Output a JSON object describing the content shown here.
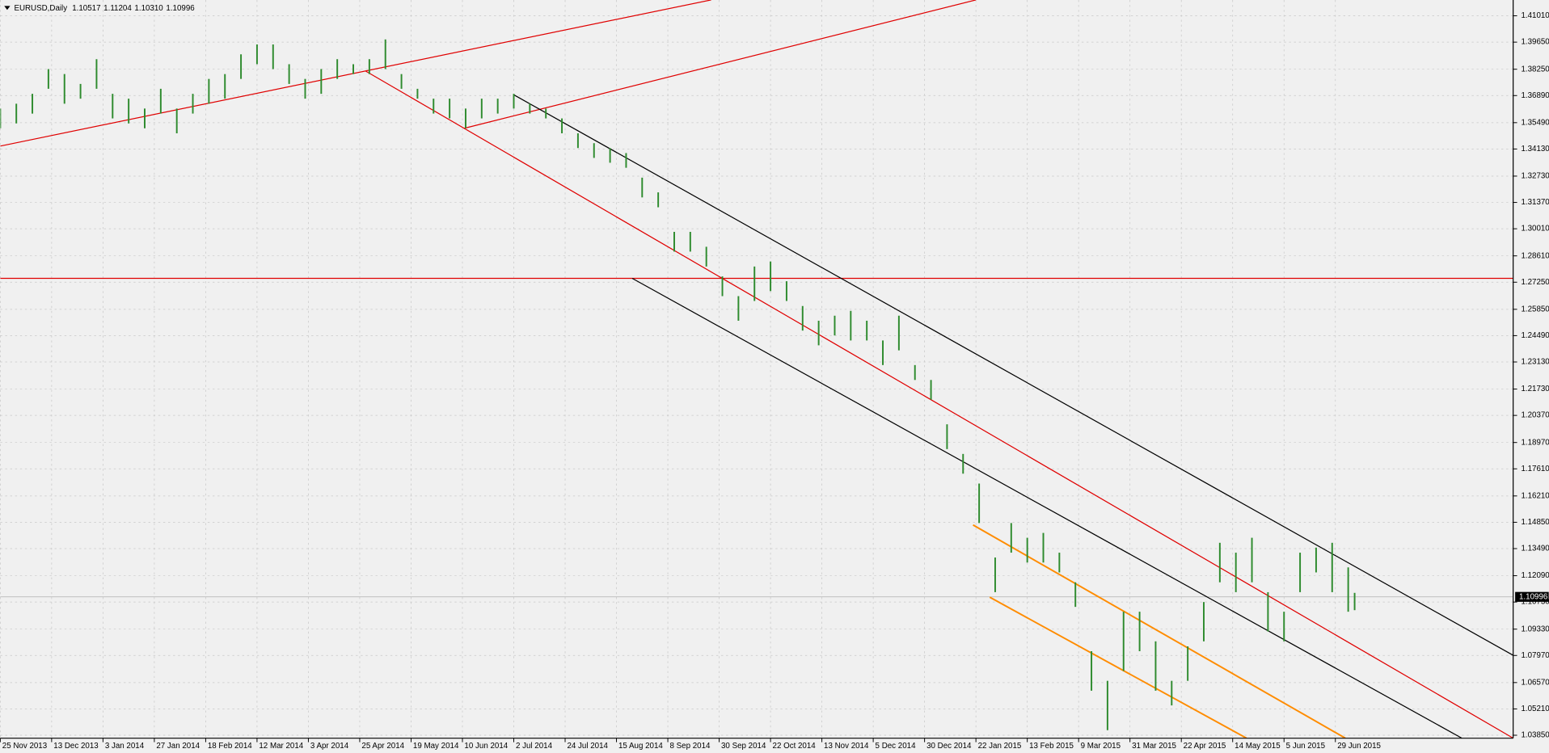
{
  "chart_data": {
    "type": "hlbar",
    "symbol": "EURUSD,Daily",
    "header_values": [
      1.10517,
      1.11204,
      1.1031,
      1.10996
    ],
    "header_labels": [
      "1.10517",
      "1.11204",
      "1.10310",
      "1.10996"
    ],
    "last": 1.10996,
    "color": "#2e8b2e",
    "grid": true,
    "xlim": [
      0,
      471.4
    ],
    "ylim": [
      1.03697,
      1.41826
    ],
    "xticks": [
      {
        "value": 0,
        "label": "25 Nov 2013"
      },
      {
        "value": 16,
        "label": "13 Dec 2013"
      },
      {
        "value": 32,
        "label": "3 Jan 2014"
      },
      {
        "value": 48,
        "label": "27 Jan 2014"
      },
      {
        "value": 64,
        "label": "18 Feb 2014"
      },
      {
        "value": 80,
        "label": "12 Mar 2014"
      },
      {
        "value": 96,
        "label": "3 Apr 2014"
      },
      {
        "value": 112,
        "label": "25 Apr 2014"
      },
      {
        "value": 128,
        "label": "19 May 2014"
      },
      {
        "value": 144,
        "label": "10 Jun 2014"
      },
      {
        "value": 160,
        "label": "2 Jul 2014"
      },
      {
        "value": 176,
        "label": "24 Jul 2014"
      },
      {
        "value": 192,
        "label": "15 Aug 2014"
      },
      {
        "value": 208,
        "label": "8 Sep 2014"
      },
      {
        "value": 224,
        "label": "30 Sep 2014"
      },
      {
        "value": 240,
        "label": "22 Oct 2014"
      },
      {
        "value": 256,
        "label": "13 Nov 2014"
      },
      {
        "value": 272,
        "label": "5 Dec 2014"
      },
      {
        "value": 288,
        "label": "30 Dec 2014"
      },
      {
        "value": 304,
        "label": "22 Jan 2015"
      },
      {
        "value": 320,
        "label": "13 Feb 2015"
      },
      {
        "value": 336,
        "label": "9 Mar 2015"
      },
      {
        "value": 352,
        "label": "31 Mar 2015"
      },
      {
        "value": 368,
        "label": "22 Apr 2015"
      },
      {
        "value": 384,
        "label": "14 May 2015"
      },
      {
        "value": 400,
        "label": "5 Jun 2015"
      },
      {
        "value": 416,
        "label": "29 Jun 2015"
      }
    ],
    "yticks": [
      {
        "value": 1.4101,
        "label": "1.41010"
      },
      {
        "value": 1.3965,
        "label": "1.39650"
      },
      {
        "value": 1.3825,
        "label": "1.38250"
      },
      {
        "value": 1.3689,
        "label": "1.36890"
      },
      {
        "value": 1.3549,
        "label": "1.35490"
      },
      {
        "value": 1.3413,
        "label": "1.34130"
      },
      {
        "value": 1.3273,
        "label": "1.32730"
      },
      {
        "value": 1.3137,
        "label": "1.31370"
      },
      {
        "value": 1.3001,
        "label": "1.30010"
      },
      {
        "value": 1.2861,
        "label": "1.28610"
      },
      {
        "value": 1.2725,
        "label": "1.27250"
      },
      {
        "value": 1.2585,
        "label": "1.25850"
      },
      {
        "value": 1.2449,
        "label": "1.24490"
      },
      {
        "value": 1.2313,
        "label": "1.23130"
      },
      {
        "value": 1.2173,
        "label": "1.21730"
      },
      {
        "value": 1.2037,
        "label": "1.20370"
      },
      {
        "value": 1.1897,
        "label": "1.18970"
      },
      {
        "value": 1.1761,
        "label": "1.17610"
      },
      {
        "value": 1.1621,
        "label": "1.16210"
      },
      {
        "value": 1.1485,
        "label": "1.14850"
      },
      {
        "value": 1.1349,
        "label": "1.13490"
      },
      {
        "value": 1.1209,
        "label": "1.12090"
      },
      {
        "value": 1.1073,
        "label": "1.10730"
      },
      {
        "value": 1.0933,
        "label": "1.09330"
      },
      {
        "value": 1.0797,
        "label": "1.07970"
      },
      {
        "value": 1.0657,
        "label": "1.06570"
      },
      {
        "value": 1.0521,
        "label": "1.05210"
      },
      {
        "value": 1.0385,
        "label": "1.03850"
      }
    ],
    "x": [
      0,
      5,
      10,
      15,
      20,
      25,
      30,
      35,
      40,
      45,
      50,
      55,
      60,
      65,
      70,
      75,
      80,
      85,
      90,
      95,
      100,
      105,
      110,
      115,
      120,
      125,
      130,
      135,
      140,
      145,
      150,
      155,
      160,
      165,
      170,
      175,
      180,
      185,
      190,
      195,
      200,
      205,
      210,
      215,
      220,
      225,
      230,
      235,
      240,
      245,
      250,
      255,
      260,
      265,
      270,
      275,
      280,
      285,
      290,
      295,
      300,
      305,
      310,
      315,
      320,
      325,
      330,
      335,
      340,
      345,
      350,
      355,
      360,
      365,
      370,
      375,
      380,
      385,
      390,
      395,
      400,
      405,
      410,
      415,
      420,
      422
    ],
    "high": [
      1.3622,
      1.3647,
      1.3698,
      1.3826,
      1.38,
      1.3749,
      1.3877,
      1.3698,
      1.3673,
      1.3622,
      1.3724,
      1.3622,
      1.3698,
      1.3775,
      1.38,
      1.3902,
      1.3953,
      1.3953,
      1.3851,
      1.3775,
      1.3826,
      1.3877,
      1.3851,
      1.3877,
      1.3979,
      1.38,
      1.3724,
      1.3673,
      1.3673,
      1.3622,
      1.3673,
      1.3673,
      1.3698,
      1.3647,
      1.3622,
      1.3571,
      1.3494,
      1.3443,
      1.3418,
      1.3392,
      1.3265,
      1.3189,
      1.2985,
      1.2985,
      1.2908,
      1.2755,
      1.2653,
      1.2806,
      1.2832,
      1.273,
      1.2602,
      1.2526,
      1.2552,
      1.2577,
      1.2526,
      1.2424,
      1.2552,
      1.2297,
      1.222,
      1.1991,
      1.1838,
      1.1685,
      1.1303,
      1.1481,
      1.1405,
      1.143,
      1.1328,
      1.1175,
      1.0819,
      1.0666,
      1.1023,
      1.1023,
      1.087,
      1.0666,
      1.0844,
      1.1073,
      1.1379,
      1.1328,
      1.1405,
      1.1124,
      1.1023,
      1.1328,
      1.1354,
      1.1379,
      1.1252,
      1.11204
    ],
    "low": [
      1.352,
      1.3545,
      1.3596,
      1.3724,
      1.3647,
      1.3673,
      1.3724,
      1.3571,
      1.3545,
      1.352,
      1.3596,
      1.3494,
      1.3596,
      1.3647,
      1.3673,
      1.3775,
      1.3851,
      1.3826,
      1.3749,
      1.3673,
      1.3698,
      1.3775,
      1.38,
      1.38,
      1.3826,
      1.3724,
      1.3673,
      1.3596,
      1.3571,
      1.352,
      1.3571,
      1.3596,
      1.3622,
      1.3596,
      1.3571,
      1.3494,
      1.3418,
      1.3367,
      1.3342,
      1.3316,
      1.3163,
      1.3112,
      1.2883,
      1.2883,
      1.2806,
      1.2653,
      1.2526,
      1.2628,
      1.2679,
      1.2628,
      1.2475,
      1.2399,
      1.245,
      1.2424,
      1.2424,
      1.2297,
      1.2373,
      1.222,
      1.2118,
      1.1863,
      1.1736,
      1.1481,
      1.1124,
      1.1328,
      1.1277,
      1.1277,
      1.1226,
      1.1048,
      1.0615,
      1.0411,
      1.0717,
      1.0819,
      1.0615,
      1.0539,
      1.0666,
      1.087,
      1.1175,
      1.1124,
      1.1175,
      1.0921,
      1.087,
      1.1124,
      1.1226,
      1.1124,
      1.1023,
      1.1031
    ],
    "trendlines": [
      {
        "color": "#e00000",
        "x": [
          0,
          221.5
        ],
        "y": [
          1.3428,
          1.4183
        ]
      },
      {
        "color": "#e00000",
        "x": [
          144.6,
          304
        ],
        "y": [
          1.352,
          1.4183
        ]
      },
      {
        "color": "#e00000",
        "x": [
          113.8,
          471.4
        ],
        "y": [
          1.3816,
          1.037
        ]
      },
      {
        "color": "#e00000",
        "x": [
          0,
          471.4
        ],
        "y": [
          1.2745,
          1.2745
        ]
      },
      {
        "color": "#000000",
        "x": [
          160,
          471.4
        ],
        "y": [
          1.3693,
          1.0798
        ]
      },
      {
        "color": "#000000",
        "x": [
          196.9,
          455.4
        ],
        "y": [
          1.2745,
          1.037
        ]
      },
      {
        "color": "#ff8c00",
        "x": [
          303.1,
          419.1
        ],
        "y": [
          1.1471,
          1.037
        ]
      },
      {
        "color": "#ff8c00",
        "x": [
          308.3,
          388.3
        ],
        "y": [
          1.1098,
          1.037
        ]
      }
    ]
  }
}
